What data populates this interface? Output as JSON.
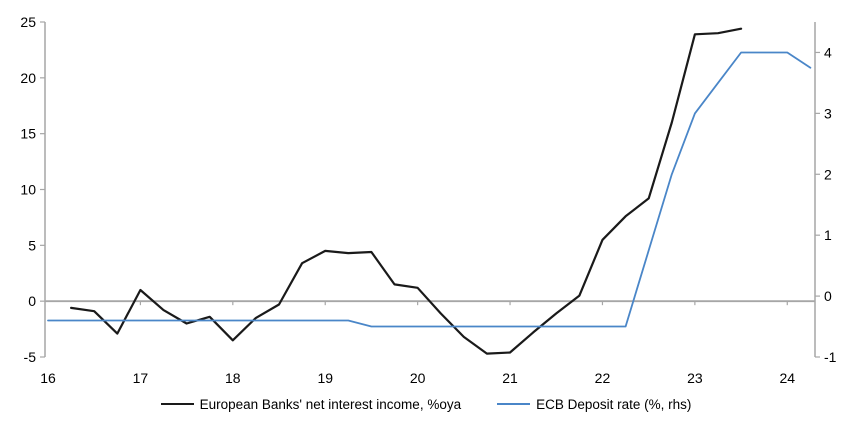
{
  "chart_data": {
    "type": "line",
    "x_axis": {
      "tick_labels": [
        "16",
        "17",
        "18",
        "19",
        "20",
        "21",
        "22",
        "23",
        "24"
      ],
      "tick_values": [
        16,
        17,
        18,
        19,
        20,
        21,
        22,
        23,
        24
      ],
      "range": [
        16,
        24.3
      ]
    },
    "left_axis": {
      "tick_labels": [
        "-5",
        "0",
        "5",
        "10",
        "15",
        "20",
        "25"
      ],
      "tick_values": [
        -5,
        0,
        5,
        10,
        15,
        20,
        25
      ],
      "range": [
        -5,
        25
      ]
    },
    "right_axis": {
      "tick_labels": [
        "-1",
        "0",
        "1",
        "2",
        "3",
        "4"
      ],
      "tick_values": [
        -1,
        0,
        1,
        2,
        3,
        4
      ],
      "range": [
        -1,
        4.5
      ]
    },
    "grid": "none",
    "zero_line": true,
    "legend_position": "bottom-center",
    "colors": {
      "axis": "#a6a6a6",
      "text": "#000000"
    },
    "series": [
      {
        "name": "European Banks' net interest income, %oya",
        "color": "#1a1a1a",
        "axis": "left",
        "stroke_width": 2.2,
        "x": [
          16.25,
          16.5,
          16.75,
          17,
          17.25,
          17.5,
          17.75,
          18,
          18.25,
          18.5,
          18.75,
          19,
          19.25,
          19.5,
          19.75,
          20,
          20.25,
          20.5,
          20.75,
          21,
          21.25,
          21.5,
          21.75,
          22,
          22.25,
          22.5,
          22.75,
          23,
          23.25,
          23.5
        ],
        "y": [
          -0.6,
          -0.9,
          -2.9,
          1.0,
          -0.8,
          -2.0,
          -1.4,
          -3.5,
          -1.5,
          -0.3,
          3.4,
          4.5,
          4.3,
          4.4,
          1.5,
          1.2,
          -1.1,
          -3.2,
          -4.7,
          -4.6,
          -2.8,
          -1.1,
          0.5,
          5.5,
          7.6,
          9.2,
          16.0,
          23.9,
          24.0,
          24.4
        ]
      },
      {
        "name": "ECB Deposit rate (%, rhs)",
        "color": "#4a86c8",
        "axis": "right",
        "stroke_width": 1.8,
        "x": [
          16,
          16.25,
          16.5,
          16.75,
          17,
          17.25,
          17.5,
          17.75,
          18,
          18.25,
          18.5,
          18.75,
          19,
          19.25,
          19.5,
          19.75,
          20,
          20.25,
          20.5,
          20.75,
          21,
          21.25,
          21.5,
          21.75,
          22,
          22.25,
          22.5,
          22.75,
          23,
          23.25,
          23.5,
          23.75,
          24,
          24.25
        ],
        "y": [
          -0.4,
          -0.4,
          -0.4,
          -0.4,
          -0.4,
          -0.4,
          -0.4,
          -0.4,
          -0.4,
          -0.4,
          -0.4,
          -0.4,
          -0.4,
          -0.4,
          -0.5,
          -0.5,
          -0.5,
          -0.5,
          -0.5,
          -0.5,
          -0.5,
          -0.5,
          -0.5,
          -0.5,
          -0.5,
          -0.5,
          0.75,
          2.0,
          3.0,
          3.5,
          4.0,
          4.0,
          4.0,
          3.75
        ]
      }
    ]
  },
  "legend": {
    "items": [
      {
        "label": "European Banks' net interest income, %oya",
        "color": "#1a1a1a"
      },
      {
        "label": "ECB Deposit rate (%, rhs)",
        "color": "#4a86c8"
      }
    ]
  }
}
